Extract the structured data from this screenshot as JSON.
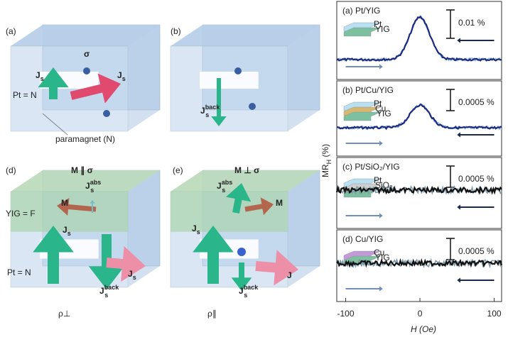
{
  "figure": {
    "panels": [
      {
        "label": "(a)",
        "texts": [
          {
            "base": "σ"
          },
          {
            "base": "J",
            "sub": "s"
          },
          {
            "base": "J",
            "sub": "s"
          },
          {
            "base": "Pt = N"
          },
          {
            "base": "paramagnet (N)"
          }
        ]
      },
      {
        "label": "(b)",
        "texts": [
          {
            "base": "J",
            "sub": "s",
            "sup": "back"
          }
        ]
      },
      {
        "label": "(d)",
        "texts": [
          {
            "base": "M ∥ σ"
          },
          {
            "base": "J",
            "sub": "s",
            "sup": "abs"
          },
          {
            "base": "M"
          },
          {
            "base": "J",
            "sub": "s"
          },
          {
            "base": "YIG = F"
          },
          {
            "base": "Pt = N"
          },
          {
            "base": "J",
            "sub": "s",
            "sup": "back"
          },
          {
            "base": "J",
            "sub": "s"
          }
        ]
      },
      {
        "label": "(e)",
        "texts": [
          {
            "base": "M ⊥ σ"
          },
          {
            "base": "J",
            "sub": "s",
            "sup": "abs"
          },
          {
            "base": "M"
          },
          {
            "base": "J",
            "sub": "s"
          },
          {
            "base": "J",
            "sub": "s",
            "sup": "back"
          },
          {
            "base": "J"
          }
        ]
      }
    ],
    "captions": [
      "ρ⊥",
      "ρ∥"
    ],
    "plot": {
      "ylabel": {
        "base": "MR",
        "sub": "H",
        "rest": " (%)"
      },
      "xlabel": {
        "base": "H",
        "rest": " (Oe)"
      },
      "xlim": [
        -112,
        110
      ],
      "xticks": [
        -100,
        0,
        100
      ],
      "subplots": [
        {
          "label": "(a) Pt/YIG",
          "scale": "0.01 %",
          "layers": [
            "Pt",
            "YIG"
          ]
        },
        {
          "label": "(b) Pt/Cu/YIG",
          "scale": "0.0005 %",
          "layers": [
            "Pt",
            "Cu",
            "YIG"
          ]
        },
        {
          "label": "(c) Pt/SiO₂/YIG",
          "scale": "0.0005 %",
          "layers": [
            "Pt",
            "SiO₂",
            "YIG"
          ]
        },
        {
          "label": "(d) Cu/YIG",
          "scale": "0.0005 %",
          "layers": [
            "Cu",
            "YIG"
          ]
        }
      ]
    }
  }
}
